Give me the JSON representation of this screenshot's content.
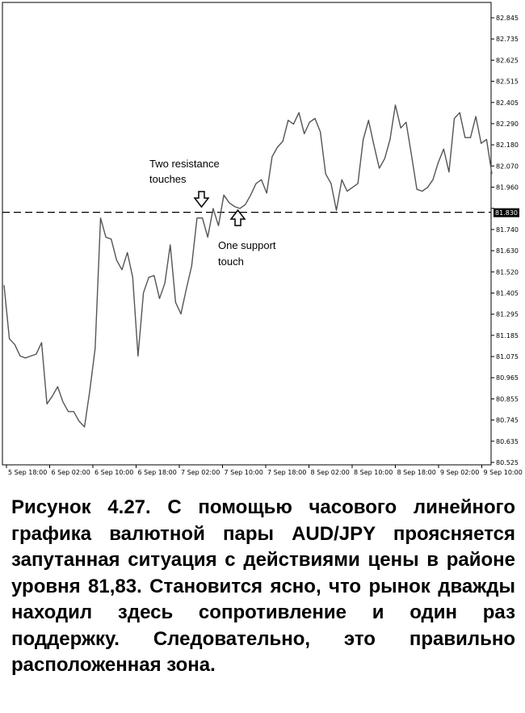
{
  "chart_data": {
    "type": "line",
    "y_ticks": [
      "82.845",
      "82.735",
      "82.625",
      "82.515",
      "82.405",
      "82.290",
      "82.180",
      "82.070",
      "81.960",
      "81.830",
      "81.740",
      "81.630",
      "81.520",
      "81.405",
      "81.295",
      "81.185",
      "81.075",
      "80.965",
      "80.855",
      "80.745",
      "80.635",
      "80.525"
    ],
    "x_ticks": [
      "5 Sep 18:00",
      "6 Sep 02:00",
      "6 Sep 10:00",
      "6 Sep 18:00",
      "7 Sep 02:00",
      "7 Sep 10:00",
      "7 Sep 18:00",
      "8 Sep 02:00",
      "8 Sep 10:00",
      "8 Sep 18:00",
      "9 Sep 02:00",
      "9 Sep 10:00"
    ],
    "ylim": [
      80.525,
      82.88
    ],
    "level": 81.83,
    "level_label": "81.830",
    "grid": false,
    "series": [
      {
        "values": [
          81.45,
          81.17,
          81.14,
          81.08,
          81.07,
          81.08,
          81.09,
          81.15,
          80.83,
          80.87,
          80.92,
          80.84,
          80.79,
          80.79,
          80.74,
          80.71,
          80.9,
          81.12,
          81.8,
          81.7,
          81.69,
          81.58,
          81.53,
          81.62,
          81.49,
          81.08,
          81.41,
          81.49,
          81.5,
          81.38,
          81.46,
          81.66,
          81.36,
          81.3,
          81.43,
          81.55,
          81.8,
          81.8,
          81.7,
          81.85,
          81.76,
          81.92,
          81.88,
          81.86,
          81.85,
          81.87,
          81.92,
          81.98,
          82.0,
          81.93,
          82.12,
          82.17,
          82.2,
          82.31,
          82.29,
          82.35,
          82.24,
          82.3,
          82.32,
          82.25,
          82.03,
          81.98,
          81.84,
          82.0,
          81.94,
          81.96,
          81.98,
          82.21,
          82.31,
          82.18,
          82.06,
          82.11,
          82.21,
          82.39,
          82.27,
          82.3,
          82.13,
          81.95,
          81.94,
          81.96,
          82.0,
          82.09,
          82.16,
          82.04,
          82.32,
          82.35,
          82.22,
          82.22,
          82.33,
          82.19,
          82.21,
          82.03
        ]
      }
    ],
    "annotations": {
      "resistance": [
        "Two resistance",
        "touches"
      ],
      "support": [
        "One support",
        "touch"
      ]
    }
  },
  "caption": "Рисунок 4.27. С помощью часового линейного графика валютной пары AUD/JPY проясняется запутанная ситуация с действиями цены в районе уровня 81,83. Становится ясно, что рынок дважды находил здесь сопротивление и один раз поддержку. Следовательно, это правильно расположенная зона."
}
